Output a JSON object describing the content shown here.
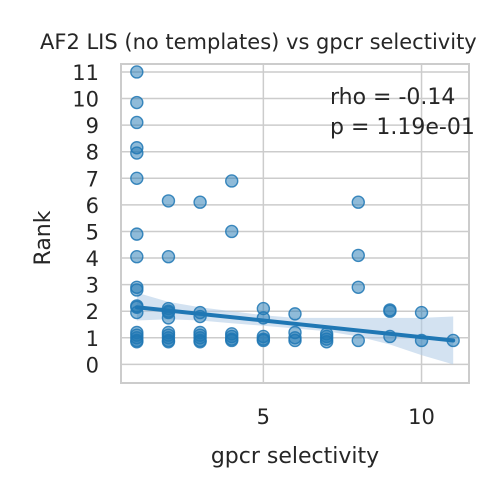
{
  "chart_data": {
    "type": "scatter",
    "title": "AF2 LIS (no templates) vs gpcr selectivity",
    "xlabel": "gpcr selectivity",
    "ylabel": "Rank",
    "xlim": [
      0.5,
      11.5
    ],
    "ylim": [
      -0.7,
      11.3
    ],
    "xticks": [
      5,
      10
    ],
    "yticks": [
      0,
      1,
      2,
      3,
      4,
      5,
      6,
      7,
      8,
      9,
      10,
      11
    ],
    "grid": true,
    "annotations": [
      "rho = -0.14",
      "p = 1.19e-01"
    ],
    "colors": {
      "points": "#1f77b4",
      "line": "#1f77b4",
      "band": "#aecbe6",
      "grid": "#cccccc"
    },
    "points": [
      [
        1,
        11
      ],
      [
        1,
        9.85
      ],
      [
        1,
        9.1
      ],
      [
        1,
        8.15
      ],
      [
        1,
        7.95
      ],
      [
        1,
        7
      ],
      [
        1,
        4.9
      ],
      [
        1,
        4.05
      ],
      [
        1,
        2.9
      ],
      [
        1,
        2.8
      ],
      [
        1,
        2.2
      ],
      [
        1,
        2.15
      ],
      [
        1,
        1.95
      ],
      [
        1,
        1.2
      ],
      [
        1,
        1.1
      ],
      [
        1,
        1.0
      ],
      [
        1,
        0.9
      ],
      [
        1,
        0.85
      ],
      [
        2,
        6.15
      ],
      [
        2,
        4.05
      ],
      [
        2,
        2.1
      ],
      [
        2,
        2.0
      ],
      [
        2,
        1.95
      ],
      [
        2,
        1.75
      ],
      [
        2,
        1.2
      ],
      [
        2,
        1.1
      ],
      [
        2,
        1.0
      ],
      [
        2,
        0.9
      ],
      [
        2,
        0.85
      ],
      [
        3,
        6.1
      ],
      [
        3,
        1.95
      ],
      [
        3,
        1.8
      ],
      [
        3,
        1.2
      ],
      [
        3,
        1.1
      ],
      [
        3,
        1.0
      ],
      [
        3,
        0.9
      ],
      [
        3,
        0.85
      ],
      [
        4,
        6.9
      ],
      [
        4,
        5.0
      ],
      [
        4,
        1.15
      ],
      [
        4,
        1.05
      ],
      [
        4,
        0.95
      ],
      [
        4,
        0.9
      ],
      [
        5,
        2.1
      ],
      [
        5,
        1.75
      ],
      [
        5,
        1.05
      ],
      [
        5,
        0.95
      ],
      [
        5,
        0.9
      ],
      [
        6,
        1.9
      ],
      [
        6,
        1.2
      ],
      [
        6,
        1.0
      ],
      [
        6,
        0.9
      ],
      [
        7,
        1.15
      ],
      [
        7,
        1.05
      ],
      [
        7,
        0.95
      ],
      [
        7,
        0.85
      ],
      [
        8,
        6.1
      ],
      [
        8,
        4.1
      ],
      [
        8,
        2.9
      ],
      [
        8,
        0.9
      ],
      [
        9,
        2.05
      ],
      [
        9,
        2.0
      ],
      [
        9,
        1.05
      ],
      [
        10,
        1.95
      ],
      [
        10,
        0.9
      ],
      [
        11,
        0.9
      ]
    ],
    "regression": {
      "x": [
        1,
        11
      ],
      "y": [
        2.15,
        0.9
      ]
    },
    "confidence_band": {
      "x": [
        1,
        2,
        3,
        4,
        5,
        6,
        7,
        8,
        9,
        10,
        11
      ],
      "upper": [
        2.7,
        2.35,
        2.15,
        2.0,
        1.85,
        1.75,
        1.75,
        1.75,
        1.75,
        1.75,
        1.8
      ],
      "lower": [
        1.65,
        1.7,
        1.65,
        1.55,
        1.45,
        1.35,
        1.25,
        1.05,
        0.75,
        0.35,
        0.0
      ]
    }
  }
}
